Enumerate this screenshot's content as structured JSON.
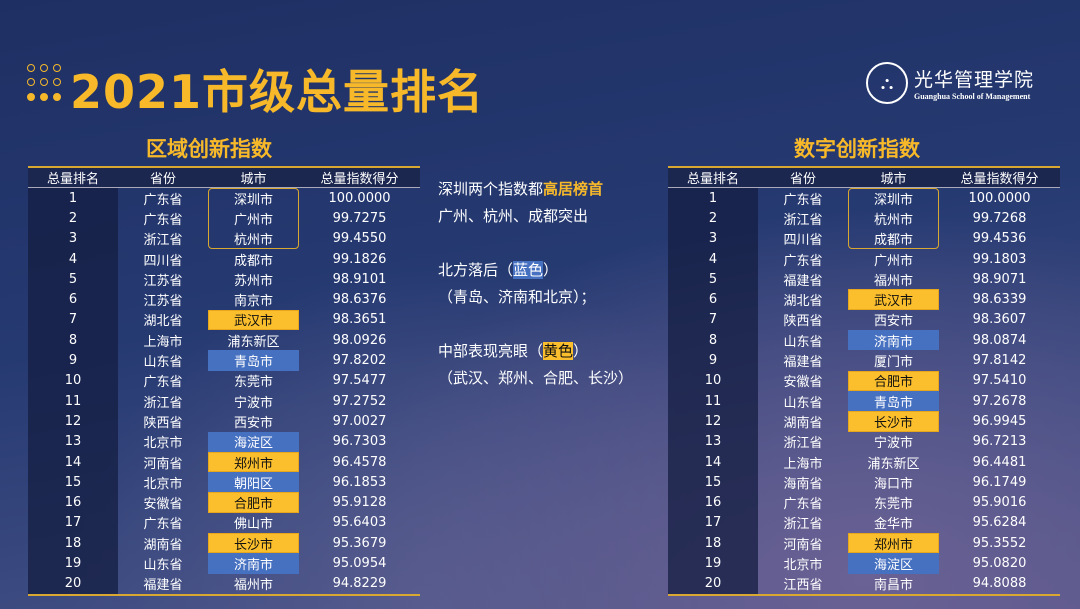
{
  "header": {
    "title": "2021市级总量排名",
    "logo_cn": "光华管理学院",
    "logo_en": "Guanghua School of Management"
  },
  "colors": {
    "accent": "#f7b92a",
    "highlight_yellow": "#fbbe2c",
    "highlight_blue": "#4670c0"
  },
  "columns": [
    "总量排名",
    "省份",
    "城市",
    "总量指数得分"
  ],
  "left": {
    "title": "区域创新指数",
    "rows": [
      [
        "1",
        "广东省",
        "深圳市",
        "100.0000",
        "o"
      ],
      [
        "2",
        "广东省",
        "广州市",
        "99.7275",
        "o"
      ],
      [
        "3",
        "浙江省",
        "杭州市",
        "99.4550",
        "o"
      ],
      [
        "4",
        "四川省",
        "成都市",
        "99.1826",
        ""
      ],
      [
        "5",
        "江苏省",
        "苏州市",
        "98.9101",
        ""
      ],
      [
        "6",
        "江苏省",
        "南京市",
        "98.6376",
        ""
      ],
      [
        "7",
        "湖北省",
        "武汉市",
        "98.3651",
        "y"
      ],
      [
        "8",
        "上海市",
        "浦东新区",
        "98.0926",
        ""
      ],
      [
        "9",
        "山东省",
        "青岛市",
        "97.8202",
        "b"
      ],
      [
        "10",
        "广东省",
        "东莞市",
        "97.5477",
        ""
      ],
      [
        "11",
        "浙江省",
        "宁波市",
        "97.2752",
        ""
      ],
      [
        "12",
        "陕西省",
        "西安市",
        "97.0027",
        ""
      ],
      [
        "13",
        "北京市",
        "海淀区",
        "96.7303",
        "b"
      ],
      [
        "14",
        "河南省",
        "郑州市",
        "96.4578",
        "y"
      ],
      [
        "15",
        "北京市",
        "朝阳区",
        "96.1853",
        "b"
      ],
      [
        "16",
        "安徽省",
        "合肥市",
        "95.9128",
        "y"
      ],
      [
        "17",
        "广东省",
        "佛山市",
        "95.6403",
        ""
      ],
      [
        "18",
        "湖南省",
        "长沙市",
        "95.3679",
        "y"
      ],
      [
        "19",
        "山东省",
        "济南市",
        "95.0954",
        "b"
      ],
      [
        "20",
        "福建省",
        "福州市",
        "94.8229",
        ""
      ]
    ]
  },
  "right": {
    "title": "数字创新指数",
    "rows": [
      [
        "1",
        "广东省",
        "深圳市",
        "100.0000",
        "o"
      ],
      [
        "2",
        "浙江省",
        "杭州市",
        "99.7268",
        "o"
      ],
      [
        "3",
        "四川省",
        "成都市",
        "99.4536",
        "o"
      ],
      [
        "4",
        "广东省",
        "广州市",
        "99.1803",
        ""
      ],
      [
        "5",
        "福建省",
        "福州市",
        "98.9071",
        ""
      ],
      [
        "6",
        "湖北省",
        "武汉市",
        "98.6339",
        "y"
      ],
      [
        "7",
        "陕西省",
        "西安市",
        "98.3607",
        ""
      ],
      [
        "8",
        "山东省",
        "济南市",
        "98.0874",
        "b"
      ],
      [
        "9",
        "福建省",
        "厦门市",
        "97.8142",
        ""
      ],
      [
        "10",
        "安徽省",
        "合肥市",
        "97.5410",
        "y"
      ],
      [
        "11",
        "山东省",
        "青岛市",
        "97.2678",
        "b"
      ],
      [
        "12",
        "湖南省",
        "长沙市",
        "96.9945",
        "y"
      ],
      [
        "13",
        "浙江省",
        "宁波市",
        "96.7213",
        ""
      ],
      [
        "14",
        "上海市",
        "浦东新区",
        "96.4481",
        ""
      ],
      [
        "15",
        "海南省",
        "海口市",
        "96.1749",
        ""
      ],
      [
        "16",
        "广东省",
        "东莞市",
        "95.9016",
        ""
      ],
      [
        "17",
        "浙江省",
        "金华市",
        "95.6284",
        ""
      ],
      [
        "18",
        "河南省",
        "郑州市",
        "95.3552",
        "y"
      ],
      [
        "19",
        "北京市",
        "海淀区",
        "95.0820",
        "b"
      ],
      [
        "20",
        "江西省",
        "南昌市",
        "94.8088",
        ""
      ]
    ]
  },
  "notes": {
    "l1a": "深圳两个指数都",
    "l1b": "高居榜首",
    "l2": "广州、杭州、成都突出",
    "l3a": "北方落后（",
    "l3b": "蓝色",
    "l3c": "）",
    "l4": "（青岛、济南和北京）；",
    "l5a": "中部表现亮眼（",
    "l5b": "黄色",
    "l5c": "）",
    "l6": "（武汉、郑州、合肥、长沙）"
  }
}
